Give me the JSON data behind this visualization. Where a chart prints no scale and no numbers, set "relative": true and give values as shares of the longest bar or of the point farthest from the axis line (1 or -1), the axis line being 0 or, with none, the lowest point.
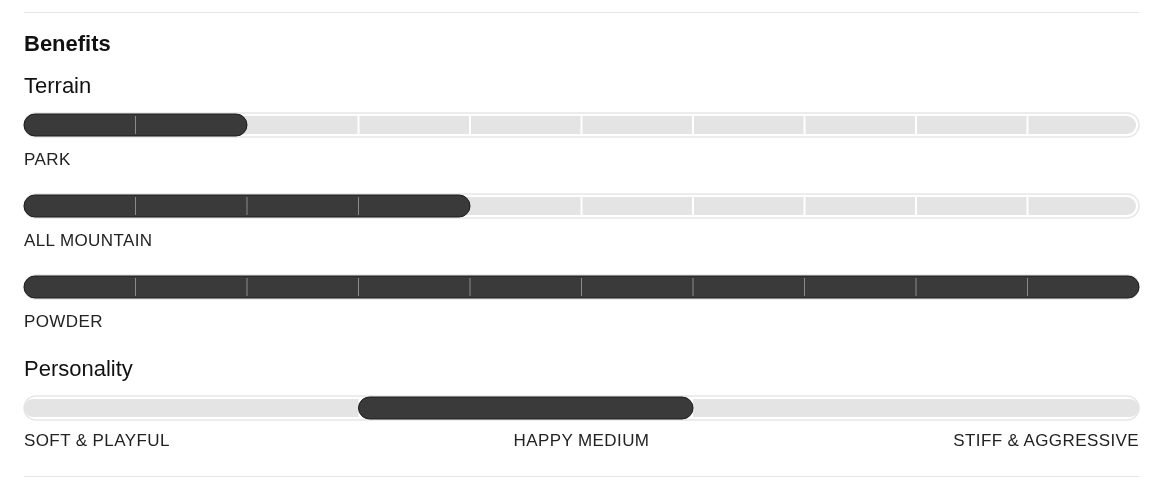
{
  "chart_data": [
    {
      "type": "bar",
      "orientation": "horizontal",
      "title": "Benefits",
      "subtitle": "Terrain",
      "categories": [
        "PARK",
        "ALL MOUNTAIN",
        "POWDER"
      ],
      "values": [
        0.2,
        0.4,
        1
      ],
      "relative": true,
      "color": "#3a3a3a"
    },
    {
      "type": "bar",
      "orientation": "horizontal",
      "stacked": true,
      "relative": true,
      "title": "Personality",
      "categories": [
        null
      ],
      "series": [
        {
          "color": "#e4e4e4",
          "values": [
            0.3
          ]
        },
        {
          "color": "#3a3a3a",
          "values": [
            0.3
          ]
        },
        {
          "color": "#e4e4e4",
          "values": [
            0.4
          ]
        }
      ],
      "annotations": [
        "SOFT & PLAYFUL",
        "HAPPY MEDIUM",
        "STIFF & AGGRESSIVE"
      ]
    }
  ]
}
